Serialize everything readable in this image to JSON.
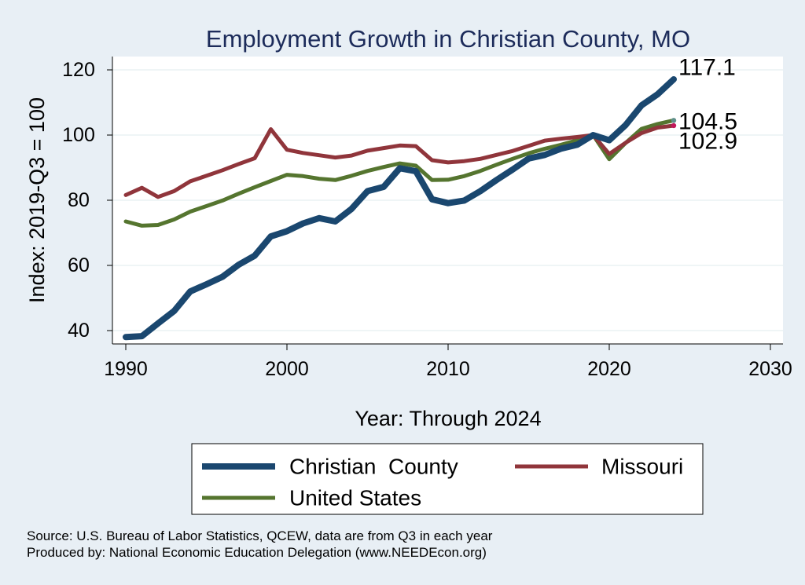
{
  "chart_data": {
    "type": "line",
    "title": "Employment Growth in Christian County, MO",
    "xlabel": "Year: Through 2024",
    "ylabel": "Index: 2019-Q3 = 100",
    "xlim": [
      1990,
      2030
    ],
    "ylim": [
      35,
      123
    ],
    "x_ticks": [
      1990,
      2000,
      2010,
      2020,
      2030
    ],
    "y_ticks": [
      40,
      60,
      80,
      100,
      120
    ],
    "grid": true,
    "legend_position": "bottom",
    "x": [
      1990,
      1991,
      1992,
      1993,
      1994,
      1995,
      1996,
      1997,
      1998,
      1999,
      2000,
      2001,
      2002,
      2003,
      2004,
      2005,
      2006,
      2007,
      2008,
      2009,
      2010,
      2011,
      2012,
      2013,
      2014,
      2015,
      2016,
      2017,
      2018,
      2019,
      2020,
      2021,
      2022,
      2023,
      2024
    ],
    "series": [
      {
        "name": "Christian  County",
        "color": "#1a476f",
        "values": [
          38.0,
          38.3,
          42.2,
          46.0,
          52.0,
          54.2,
          56.5,
          60.2,
          63.0,
          68.9,
          70.5,
          72.9,
          74.5,
          73.5,
          77.3,
          82.8,
          84.1,
          89.8,
          88.9,
          80.3,
          79.1,
          79.9,
          82.8,
          86.2,
          89.4,
          92.8,
          93.9,
          95.8,
          97.0,
          100.0,
          98.4,
          103.0,
          109.1,
          112.5,
          117.1
        ],
        "end_label": "117.1"
      },
      {
        "name": "Missouri",
        "color": "#90353b",
        "values": [
          81.6,
          83.8,
          81.0,
          82.8,
          85.8,
          87.5,
          89.2,
          91.1,
          92.9,
          101.8,
          95.5,
          94.5,
          93.8,
          93.1,
          93.7,
          95.2,
          96.0,
          96.8,
          96.6,
          92.3,
          91.6,
          92.0,
          92.7,
          93.9,
          95.1,
          96.7,
          98.3,
          98.9,
          99.4,
          100.0,
          94.2,
          97.6,
          100.6,
          102.3,
          102.9
        ],
        "end_label": "102.9"
      },
      {
        "name": "United States",
        "color": "#55752f",
        "values": [
          73.5,
          72.2,
          72.4,
          74.1,
          76.5,
          78.2,
          79.9,
          82.0,
          84.0,
          85.9,
          87.8,
          87.4,
          86.6,
          86.2,
          87.5,
          89.0,
          90.2,
          91.3,
          90.6,
          86.2,
          86.3,
          87.4,
          89.0,
          90.9,
          92.7,
          94.4,
          95.8,
          97.0,
          98.4,
          100.0,
          92.6,
          97.5,
          101.9,
          103.4,
          104.5
        ],
        "end_label": "104.5"
      }
    ],
    "notes": [
      "Source: U.S. Bureau of Labor Statistics, QCEW, data are from Q3 in each year",
      "Produced by: National Economic Education Delegation (www.NEEDEcon.org)"
    ]
  }
}
